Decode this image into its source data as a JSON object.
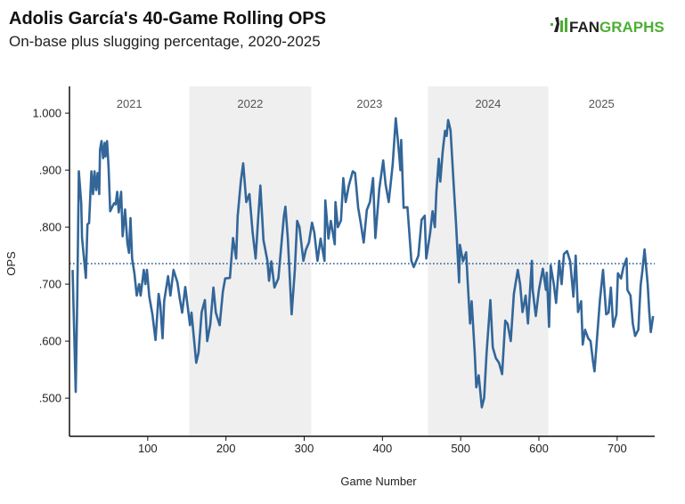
{
  "chart_data": {
    "type": "line",
    "title": "Adolis García's 40-Game Rolling OPS",
    "subtitle": "On-base plus slugging percentage, 2020-2025",
    "xlabel": "Game Number",
    "ylabel": "OPS",
    "xlim": [
      0,
      748
    ],
    "ylim": [
      0.433,
      1.047
    ],
    "xticks": [
      100,
      200,
      300,
      400,
      500,
      600,
      700
    ],
    "xtick_labels": [
      "100",
      "200",
      "300",
      "400",
      "500",
      "600",
      "700"
    ],
    "yticks": [
      0.5,
      0.6,
      0.7,
      0.8,
      0.9,
      1.0
    ],
    "ytick_labels": [
      ".500",
      ".600",
      ".700",
      ".800",
      ".900",
      "1.000"
    ],
    "grid": false,
    "reference_line": {
      "value": 0.736,
      "style": "dotted"
    },
    "season_bands": [
      {
        "label": "2021",
        "start": 0,
        "end": 153,
        "shaded": false
      },
      {
        "label": "2022",
        "start": 153,
        "end": 309,
        "shaded": true
      },
      {
        "label": "2023",
        "start": 309,
        "end": 458,
        "shaded": false
      },
      {
        "label": "2024",
        "start": 458,
        "end": 612,
        "shaded": true
      },
      {
        "label": "2025",
        "start": 612,
        "end": 748,
        "shaded": false
      }
    ],
    "series": [
      {
        "name": "40-Game Rolling OPS",
        "color": "#336699",
        "points": [
          [
            4,
            0.725
          ],
          [
            8,
            0.511
          ],
          [
            10,
            0.683
          ],
          [
            12,
            0.898
          ],
          [
            15,
            0.842
          ],
          [
            16,
            0.781
          ],
          [
            21,
            0.711
          ],
          [
            23,
            0.805
          ],
          [
            25,
            0.807
          ],
          [
            28,
            0.898
          ],
          [
            30,
            0.858
          ],
          [
            32,
            0.898
          ],
          [
            34,
            0.865
          ],
          [
            36,
            0.895
          ],
          [
            38,
            0.858
          ],
          [
            39,
            0.936
          ],
          [
            41,
            0.951
          ],
          [
            43,
            0.921
          ],
          [
            45,
            0.948
          ],
          [
            46,
            0.924
          ],
          [
            48,
            0.951
          ],
          [
            50,
            0.905
          ],
          [
            52,
            0.828
          ],
          [
            57,
            0.842
          ],
          [
            59,
            0.84
          ],
          [
            61,
            0.862
          ],
          [
            63,
            0.826
          ],
          [
            66,
            0.862
          ],
          [
            68,
            0.784
          ],
          [
            71,
            0.831
          ],
          [
            74,
            0.772
          ],
          [
            76,
            0.755
          ],
          [
            78,
            0.816
          ],
          [
            80,
            0.745
          ],
          [
            83,
            0.719
          ],
          [
            86,
            0.68
          ],
          [
            89,
            0.7
          ],
          [
            91,
            0.68
          ],
          [
            95,
            0.725
          ],
          [
            97,
            0.7
          ],
          [
            99,
            0.725
          ],
          [
            102,
            0.678
          ],
          [
            106,
            0.647
          ],
          [
            110,
            0.602
          ],
          [
            114,
            0.683
          ],
          [
            116,
            0.664
          ],
          [
            119,
            0.605
          ],
          [
            121,
            0.67
          ],
          [
            126,
            0.714
          ],
          [
            129,
            0.68
          ],
          [
            133,
            0.725
          ],
          [
            138,
            0.703
          ],
          [
            141,
            0.675
          ],
          [
            144,
            0.65
          ],
          [
            148,
            0.695
          ],
          [
            154,
            0.628
          ],
          [
            156,
            0.65
          ],
          [
            162,
            0.562
          ],
          [
            165,
            0.58
          ],
          [
            169,
            0.651
          ],
          [
            173,
            0.672
          ],
          [
            176,
            0.6
          ],
          [
            180,
            0.63
          ],
          [
            184,
            0.694
          ],
          [
            187,
            0.65
          ],
          [
            192,
            0.628
          ],
          [
            196,
            0.687
          ],
          [
            199,
            0.71
          ],
          [
            205,
            0.711
          ],
          [
            209,
            0.781
          ],
          [
            213,
            0.745
          ],
          [
            215,
            0.819
          ],
          [
            219,
            0.881
          ],
          [
            222,
            0.912
          ],
          [
            226,
            0.844
          ],
          [
            230,
            0.858
          ],
          [
            234,
            0.792
          ],
          [
            238,
            0.745
          ],
          [
            241,
            0.812
          ],
          [
            244,
            0.873
          ],
          [
            248,
            0.777
          ],
          [
            253,
            0.741
          ],
          [
            255,
            0.706
          ],
          [
            258,
            0.74
          ],
          [
            262,
            0.694
          ],
          [
            267,
            0.71
          ],
          [
            274,
            0.819
          ],
          [
            276,
            0.836
          ],
          [
            279,
            0.781
          ],
          [
            284,
            0.647
          ],
          [
            288,
            0.725
          ],
          [
            291,
            0.811
          ],
          [
            294,
            0.8
          ],
          [
            299,
            0.741
          ],
          [
            302,
            0.76
          ],
          [
            306,
            0.773
          ],
          [
            310,
            0.808
          ],
          [
            313,
            0.79
          ],
          [
            317,
            0.741
          ],
          [
            321,
            0.78
          ],
          [
            326,
            0.741
          ],
          [
            327,
            0.847
          ],
          [
            331,
            0.78
          ],
          [
            334,
            0.811
          ],
          [
            339,
            0.77
          ],
          [
            340,
            0.844
          ],
          [
            343,
            0.8
          ],
          [
            347,
            0.812
          ],
          [
            350,
            0.886
          ],
          [
            353,
            0.844
          ],
          [
            357,
            0.873
          ],
          [
            362,
            0.898
          ],
          [
            365,
            0.895
          ],
          [
            369,
            0.834
          ],
          [
            372,
            0.81
          ],
          [
            376,
            0.773
          ],
          [
            380,
            0.83
          ],
          [
            384,
            0.844
          ],
          [
            388,
            0.886
          ],
          [
            391,
            0.781
          ],
          [
            396,
            0.867
          ],
          [
            401,
            0.917
          ],
          [
            404,
            0.875
          ],
          [
            408,
            0.844
          ],
          [
            413,
            0.909
          ],
          [
            417,
            0.991
          ],
          [
            421,
            0.933
          ],
          [
            423,
            0.9
          ],
          [
            424,
            0.953
          ],
          [
            427,
            0.834
          ],
          [
            432,
            0.835
          ],
          [
            434,
            0.797
          ],
          [
            437,
            0.741
          ],
          [
            440,
            0.73
          ],
          [
            446,
            0.75
          ],
          [
            450,
            0.813
          ],
          [
            454,
            0.82
          ],
          [
            456,
            0.745
          ],
          [
            461,
            0.79
          ],
          [
            464,
            0.828
          ],
          [
            467,
            0.8
          ],
          [
            469,
            0.862
          ],
          [
            472,
            0.92
          ],
          [
            474,
            0.88
          ],
          [
            477,
            0.933
          ],
          [
            480,
            0.969
          ],
          [
            482,
            0.96
          ],
          [
            484,
            0.988
          ],
          [
            487,
            0.97
          ],
          [
            491,
            0.875
          ],
          [
            494,
            0.808
          ],
          [
            498,
            0.703
          ],
          [
            499,
            0.769
          ],
          [
            503,
            0.74
          ],
          [
            507,
            0.756
          ],
          [
            509,
            0.703
          ],
          [
            512,
            0.631
          ],
          [
            514,
            0.67
          ],
          [
            518,
            0.578
          ],
          [
            520,
            0.519
          ],
          [
            523,
            0.54
          ],
          [
            527,
            0.484
          ],
          [
            530,
            0.5
          ],
          [
            533,
            0.578
          ],
          [
            538,
            0.672
          ],
          [
            541,
            0.589
          ],
          [
            545,
            0.57
          ],
          [
            549,
            0.562
          ],
          [
            553,
            0.542
          ],
          [
            557,
            0.636
          ],
          [
            560,
            0.63
          ],
          [
            564,
            0.6
          ],
          [
            568,
            0.683
          ],
          [
            573,
            0.725
          ],
          [
            576,
            0.7
          ],
          [
            579,
            0.651
          ],
          [
            583,
            0.68
          ],
          [
            586,
            0.631
          ],
          [
            591,
            0.741
          ],
          [
            592,
            0.69
          ],
          [
            596,
            0.644
          ],
          [
            600,
            0.69
          ],
          [
            605,
            0.727
          ],
          [
            609,
            0.69
          ],
          [
            610,
            0.72
          ],
          [
            613,
            0.625
          ],
          [
            615,
            0.733
          ],
          [
            619,
            0.7
          ],
          [
            622,
            0.667
          ],
          [
            626,
            0.741
          ],
          [
            629,
            0.7
          ],
          [
            632,
            0.753
          ],
          [
            636,
            0.758
          ],
          [
            640,
            0.74
          ],
          [
            644,
            0.678
          ],
          [
            647,
            0.75
          ],
          [
            650,
            0.651
          ],
          [
            654,
            0.67
          ],
          [
            656,
            0.594
          ],
          [
            659,
            0.62
          ],
          [
            663,
            0.605
          ],
          [
            666,
            0.6
          ],
          [
            669,
            0.566
          ],
          [
            671,
            0.547
          ],
          [
            674,
            0.6
          ],
          [
            678,
            0.672
          ],
          [
            682,
            0.725
          ],
          [
            686,
            0.647
          ],
          [
            689,
            0.65
          ],
          [
            692,
            0.694
          ],
          [
            695,
            0.625
          ],
          [
            699,
            0.647
          ],
          [
            701,
            0.719
          ],
          [
            705,
            0.71
          ],
          [
            708,
            0.73
          ],
          [
            712,
            0.745
          ],
          [
            713,
            0.69
          ],
          [
            717,
            0.68
          ],
          [
            720,
            0.631
          ],
          [
            723,
            0.609
          ],
          [
            727,
            0.62
          ],
          [
            730,
            0.698
          ],
          [
            732,
            0.72
          ],
          [
            735,
            0.761
          ],
          [
            739,
            0.7
          ],
          [
            741,
            0.651
          ],
          [
            743,
            0.616
          ],
          [
            746,
            0.644
          ]
        ]
      }
    ]
  },
  "logo": {
    "text": "FANGRAPHS",
    "fan_color": "#222222",
    "graphs_color": "#4caf32"
  }
}
